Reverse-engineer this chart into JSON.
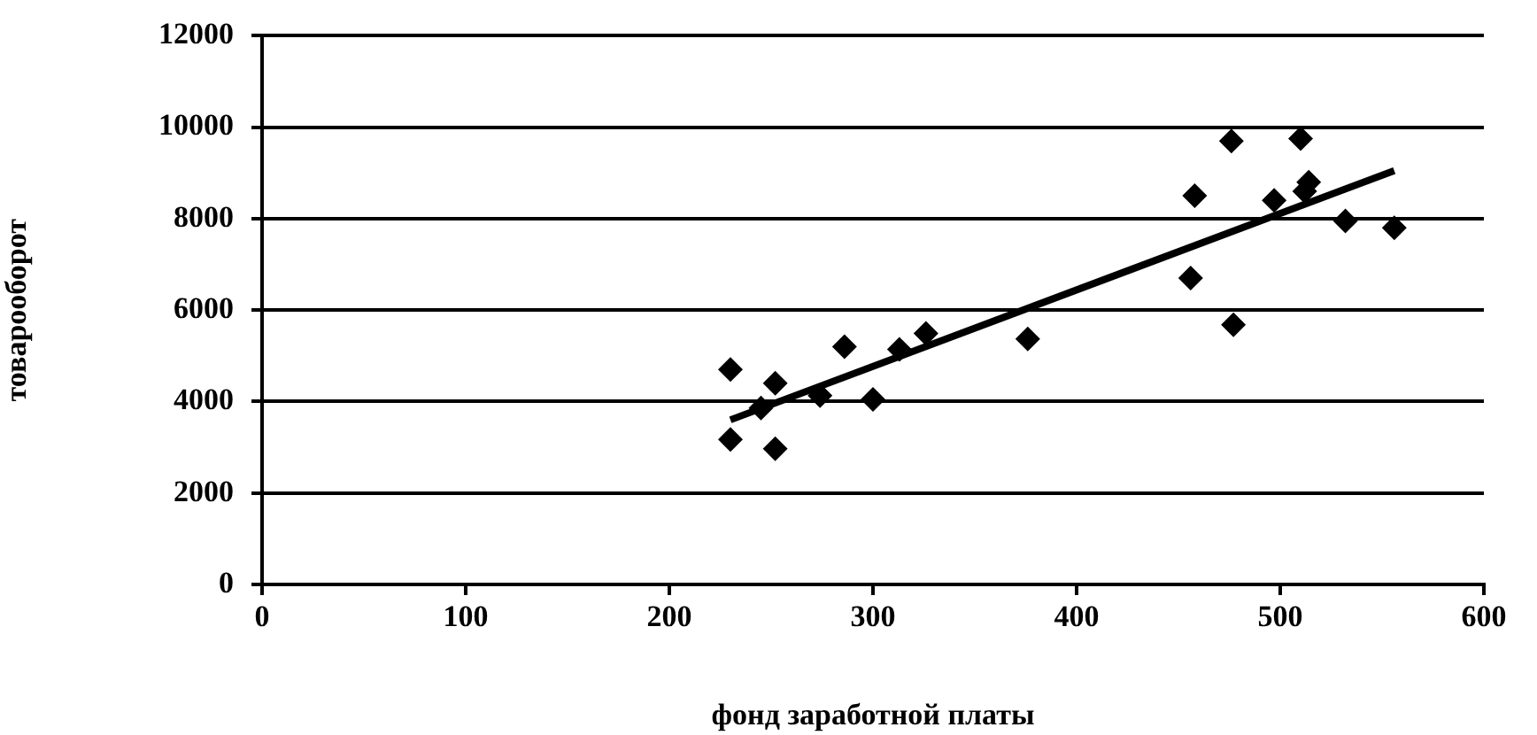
{
  "chart_data": {
    "type": "scatter",
    "xlabel": "фонд заработной платы",
    "ylabel": "товарооборот",
    "xlim": [
      0,
      600
    ],
    "ylim": [
      0,
      12000
    ],
    "xticks": [
      0,
      100,
      200,
      300,
      400,
      500,
      600
    ],
    "yticks": [
      0,
      2000,
      4000,
      6000,
      8000,
      10000,
      12000
    ],
    "grid": "y",
    "legend": false,
    "marker": "diamond",
    "series": [
      {
        "type": "line",
        "color": "#000000",
        "marker": "none",
        "x": [
          230,
          556
        ],
        "values": [
          3600,
          9050
        ]
      },
      {
        "type": "scatter",
        "color": "#000000",
        "x": [
          230,
          230,
          245,
          252,
          252,
          274,
          286,
          300,
          313,
          326,
          376,
          456,
          458,
          476,
          477,
          497,
          510,
          512,
          514,
          532,
          556
        ],
        "values": [
          4700,
          3170,
          3860,
          4400,
          2970,
          4130,
          5200,
          4050,
          5140,
          5490,
          5370,
          6700,
          8500,
          9700,
          5680,
          8400,
          9750,
          8600,
          8800,
          7950,
          7800
        ]
      }
    ]
  }
}
